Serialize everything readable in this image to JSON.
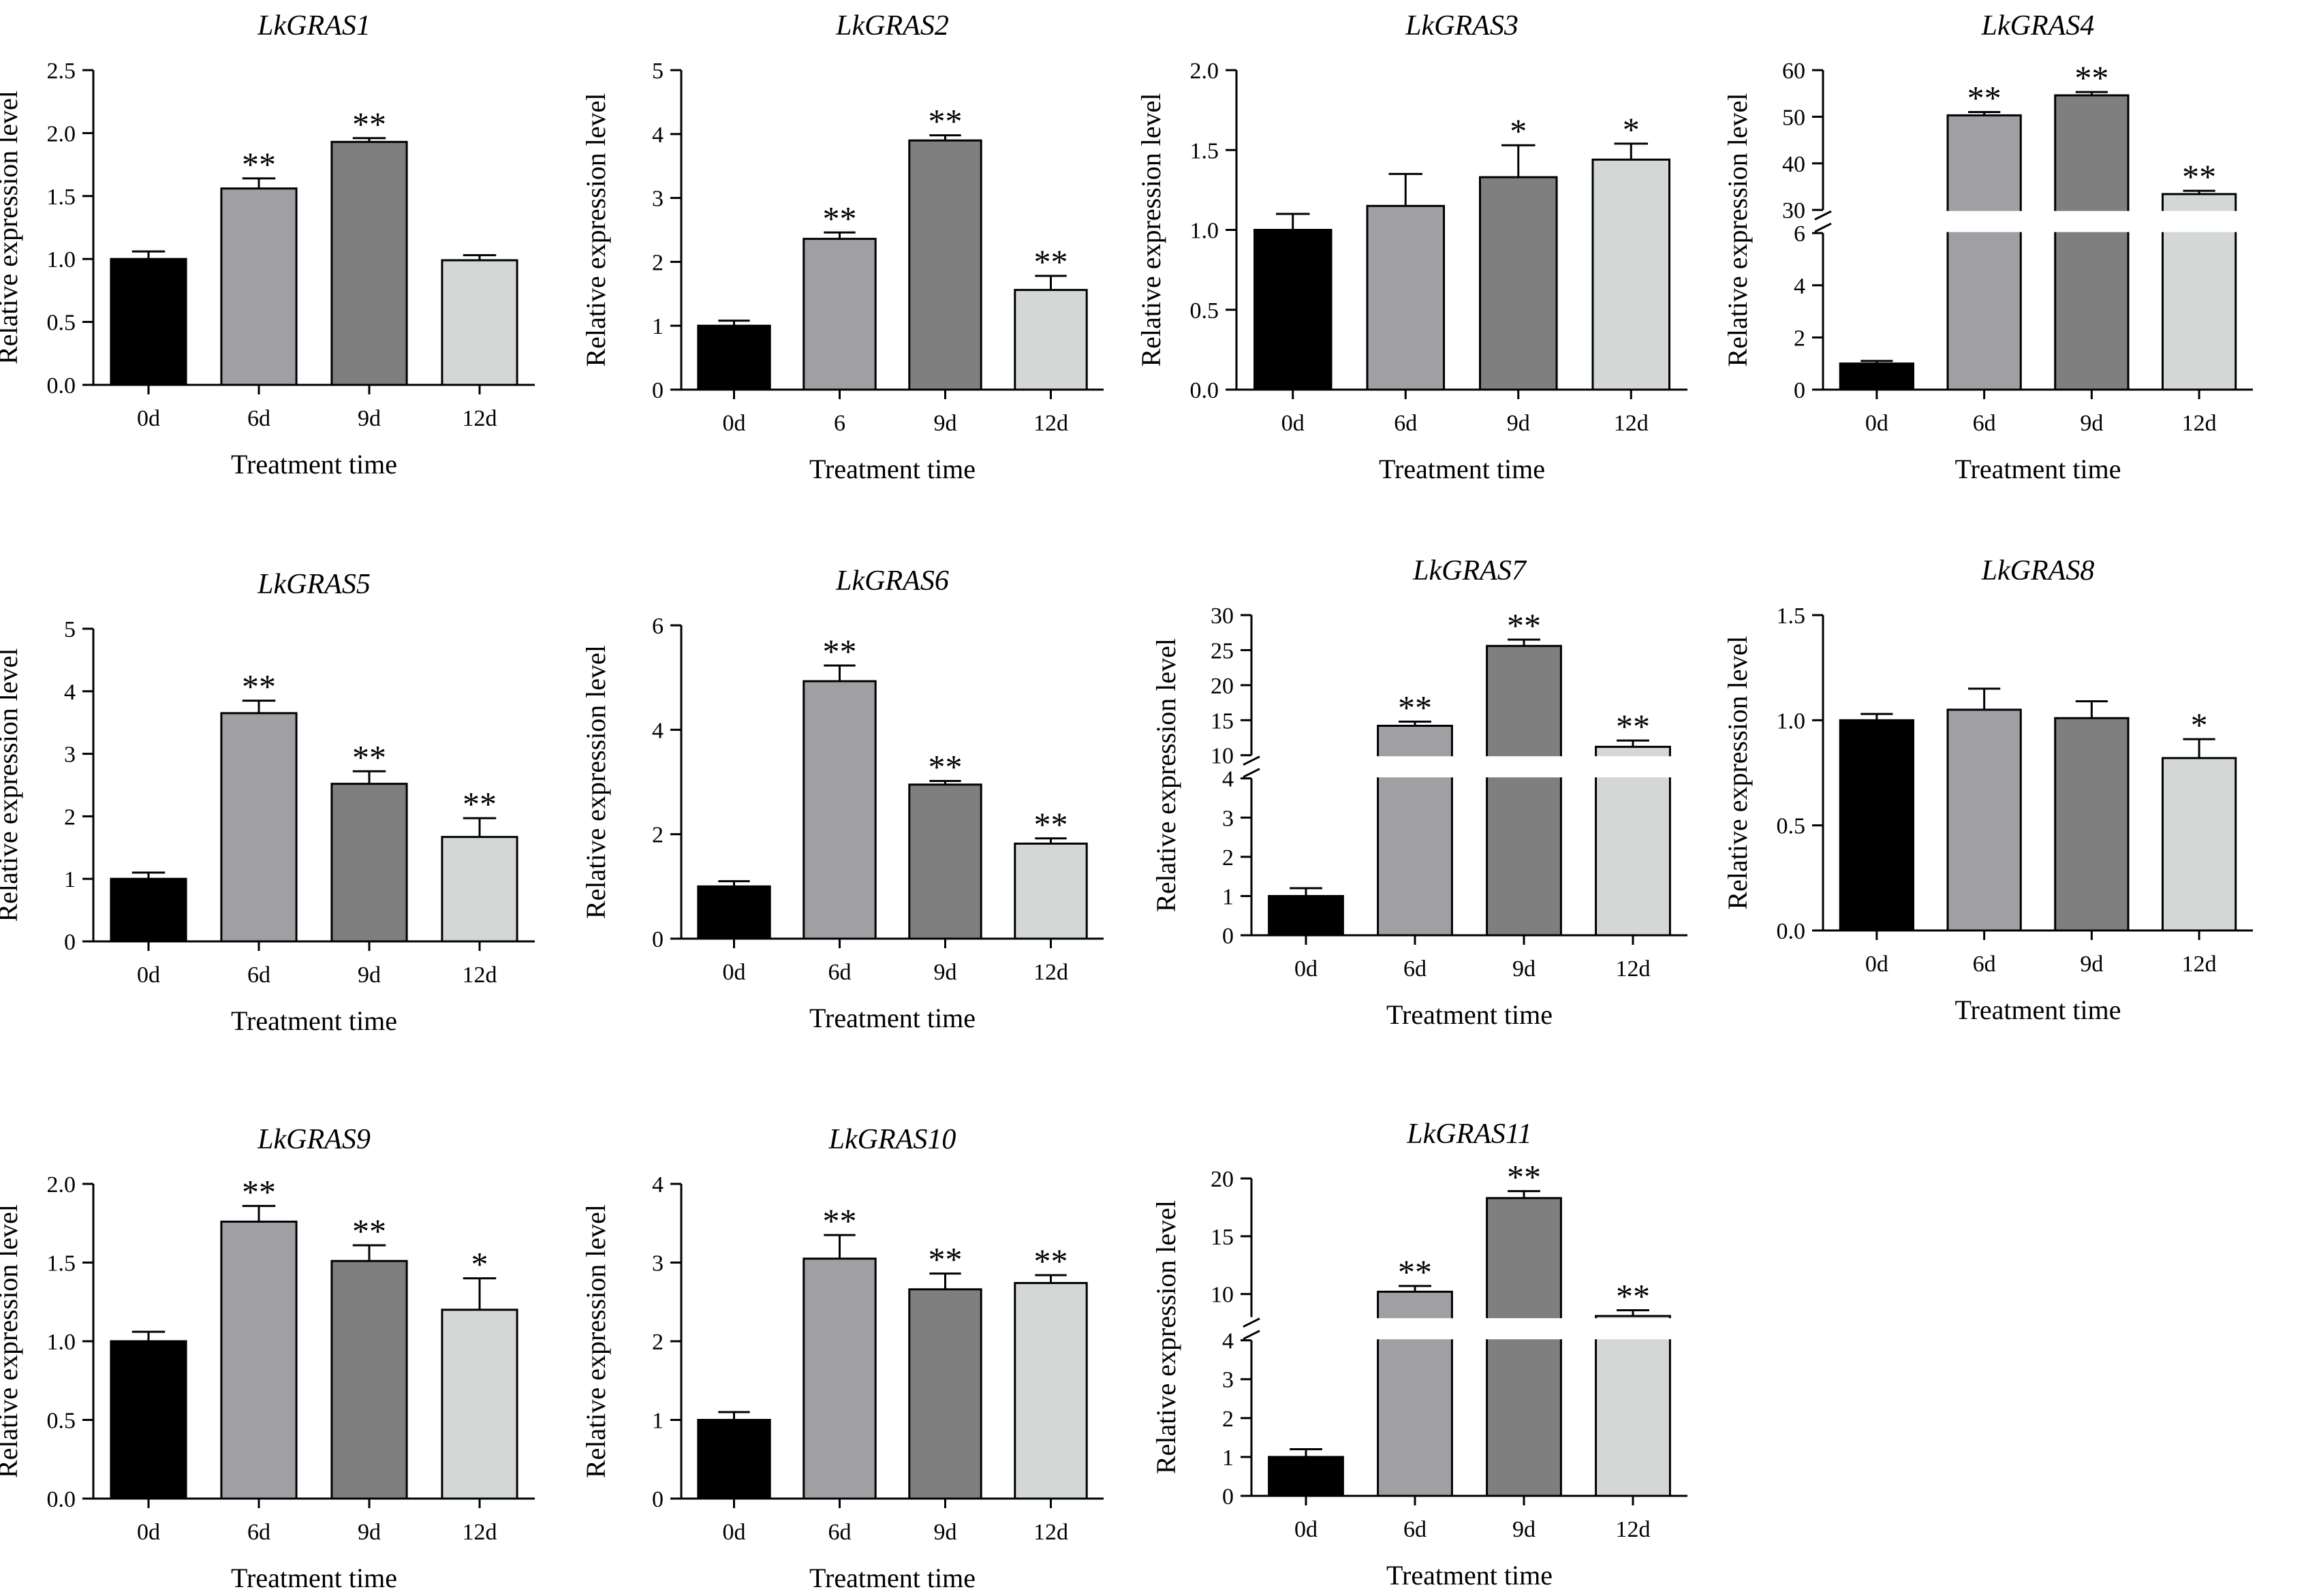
{
  "colors": {
    "bar_colors": [
      "#000000",
      "#a09fa4",
      "#7f7f7f",
      "#d3d7d6"
    ],
    "axis": "#000000"
  },
  "chart_data": [
    {
      "type": "bar",
      "title": "LkGRAS1",
      "xlabel": "Treatment time",
      "ylabel": "Relative expression level",
      "categories": [
        "0d",
        "6d",
        "9d",
        "12d"
      ],
      "values": [
        1.0,
        1.56,
        1.93,
        0.99
      ],
      "errors": [
        0.06,
        0.08,
        0.03,
        0.04
      ],
      "significance": [
        "",
        "**",
        "**",
        ""
      ],
      "ylim": [
        0,
        2.5
      ],
      "yticks": [
        0,
        0.5,
        1.0,
        1.5,
        2.0,
        2.5
      ],
      "ytick_labels": [
        "0.0",
        "0.5",
        "1.0",
        "1.5",
        "2.0",
        "2.5"
      ]
    },
    {
      "type": "bar",
      "title": "LkGRAS2",
      "xlabel": "Treatment time",
      "ylabel": "Relative expression level",
      "categories": [
        "0d",
        "6",
        "9d",
        "12d"
      ],
      "values": [
        1.0,
        2.36,
        3.9,
        1.56
      ],
      "errors": [
        0.08,
        0.1,
        0.08,
        0.22
      ],
      "significance": [
        "",
        "**",
        "**",
        "**"
      ],
      "ylim": [
        0,
        5
      ],
      "yticks": [
        0,
        1,
        2,
        3,
        4,
        5
      ],
      "ytick_labels": [
        "0",
        "1",
        "2",
        "3",
        "4",
        "5"
      ]
    },
    {
      "type": "bar",
      "title": "LkGRAS3",
      "xlabel": "Treatment time",
      "ylabel": "Relative expression level",
      "categories": [
        "0d",
        "6d",
        "9d",
        "12d"
      ],
      "values": [
        1.0,
        1.15,
        1.33,
        1.44
      ],
      "errors": [
        0.1,
        0.2,
        0.2,
        0.1
      ],
      "significance": [
        "",
        "",
        "*",
        "*"
      ],
      "ylim": [
        0,
        2.0
      ],
      "yticks": [
        0,
        0.5,
        1.0,
        1.5,
        2.0
      ],
      "ytick_labels": [
        "0.0",
        "0.5",
        "1.0",
        "1.5",
        "2.0"
      ]
    },
    {
      "type": "bar",
      "title": "LkGRAS4",
      "xlabel": "Treatment time",
      "ylabel": "Relative expression level",
      "categories": [
        "0d",
        "6d",
        "9d",
        "12d"
      ],
      "values": [
        1.0,
        50.3,
        54.6,
        33.4
      ],
      "errors": [
        0.1,
        0.7,
        0.7,
        0.7
      ],
      "significance": [
        "",
        "**",
        "**",
        "**"
      ],
      "axis_break": [
        6,
        30
      ],
      "ylim": [
        0,
        60
      ],
      "yticks": [
        0,
        2,
        4,
        6,
        30,
        40,
        50,
        60
      ],
      "ytick_labels": [
        "0",
        "2",
        "4",
        "6",
        "30",
        "40",
        "50",
        "60"
      ]
    },
    {
      "type": "bar",
      "title": "LkGRAS5",
      "xlabel": "Treatment time",
      "ylabel": "Relative expression level",
      "categories": [
        "0d",
        "6d",
        "9d",
        "12d"
      ],
      "values": [
        1.0,
        3.65,
        2.52,
        1.67
      ],
      "errors": [
        0.1,
        0.2,
        0.2,
        0.3
      ],
      "significance": [
        "",
        "**",
        "**",
        "**"
      ],
      "ylim": [
        0,
        5
      ],
      "yticks": [
        0,
        1,
        2,
        3,
        4,
        5
      ],
      "ytick_labels": [
        "0",
        "1",
        "2",
        "3",
        "4",
        "5"
      ]
    },
    {
      "type": "bar",
      "title": "LkGRAS6",
      "xlabel": "Treatment time",
      "ylabel": "Relative expression level",
      "categories": [
        "0d",
        "6d",
        "9d",
        "12d"
      ],
      "values": [
        1.0,
        4.93,
        2.95,
        1.82
      ],
      "errors": [
        0.1,
        0.3,
        0.07,
        0.1
      ],
      "significance": [
        "",
        "**",
        "**",
        "**"
      ],
      "ylim": [
        0,
        6
      ],
      "yticks": [
        0,
        2,
        4,
        6
      ],
      "ytick_labels": [
        "0",
        "2",
        "4",
        "6"
      ]
    },
    {
      "type": "bar",
      "title": "LkGRAS7",
      "xlabel": "Treatment time",
      "ylabel": "Relative expression level",
      "categories": [
        "0d",
        "6d",
        "9d",
        "12d"
      ],
      "values": [
        1.0,
        14.2,
        25.6,
        11.2
      ],
      "errors": [
        0.2,
        0.6,
        0.9,
        0.9
      ],
      "significance": [
        "",
        "**",
        "**",
        "**"
      ],
      "axis_break": [
        4,
        10
      ],
      "ylim": [
        0,
        30
      ],
      "yticks": [
        0,
        1,
        2,
        3,
        4,
        10,
        15,
        20,
        25,
        30
      ],
      "ytick_labels": [
        "0",
        "1",
        "2",
        "3",
        "4",
        "10",
        "15",
        "20",
        "25",
        "30"
      ]
    },
    {
      "type": "bar",
      "title": "LkGRAS8",
      "xlabel": "Treatment time",
      "ylabel": "Relative expression level",
      "categories": [
        "0d",
        "6d",
        "9d",
        "12d"
      ],
      "values": [
        1.0,
        1.05,
        1.01,
        0.82
      ],
      "errors": [
        0.03,
        0.1,
        0.08,
        0.09
      ],
      "significance": [
        "",
        "",
        "",
        "*"
      ],
      "ylim": [
        0,
        1.5
      ],
      "yticks": [
        0,
        0.5,
        1.0,
        1.5
      ],
      "ytick_labels": [
        "0.0",
        "0.5",
        "1.0",
        "1.5"
      ]
    },
    {
      "type": "bar",
      "title": "LkGRAS9",
      "xlabel": "Treatment time",
      "ylabel": "Relative expression level",
      "categories": [
        "0d",
        "6d",
        "9d",
        "12d"
      ],
      "values": [
        1.0,
        1.76,
        1.51,
        1.2
      ],
      "errors": [
        0.06,
        0.1,
        0.1,
        0.2
      ],
      "significance": [
        "",
        "**",
        "**",
        "*"
      ],
      "ylim": [
        0,
        2.0
      ],
      "yticks": [
        0,
        0.5,
        1.0,
        1.5,
        2.0
      ],
      "ytick_labels": [
        "0.0",
        "0.5",
        "1.0",
        "1.5",
        "2.0"
      ]
    },
    {
      "type": "bar",
      "title": "LkGRAS10",
      "xlabel": "Treatment time",
      "ylabel": "Relative expression level",
      "categories": [
        "0d",
        "6d",
        "9d",
        "12d"
      ],
      "values": [
        1.0,
        3.05,
        2.66,
        2.74
      ],
      "errors": [
        0.1,
        0.3,
        0.2,
        0.1
      ],
      "significance": [
        "",
        "**",
        "**",
        "**"
      ],
      "ylim": [
        0,
        4
      ],
      "yticks": [
        0,
        1,
        2,
        3,
        4
      ],
      "ytick_labels": [
        "0",
        "1",
        "2",
        "3",
        "4"
      ]
    },
    {
      "type": "bar",
      "title": "LkGRAS11",
      "xlabel": "Treatment time",
      "ylabel": "Relative expression level",
      "categories": [
        "0d",
        "6d",
        "9d",
        "12d"
      ],
      "values": [
        1.0,
        10.2,
        18.3,
        8.1
      ],
      "errors": [
        0.2,
        0.5,
        0.6,
        0.5
      ],
      "significance": [
        "",
        "**",
        "**",
        "**"
      ],
      "axis_break": [
        4,
        8
      ],
      "ylim": [
        0,
        20
      ],
      "yticks": [
        0,
        1,
        2,
        3,
        4,
        10,
        15,
        20
      ],
      "ytick_labels": [
        "0",
        "1",
        "2",
        "3",
        "4",
        "10",
        "15",
        "20"
      ]
    }
  ]
}
